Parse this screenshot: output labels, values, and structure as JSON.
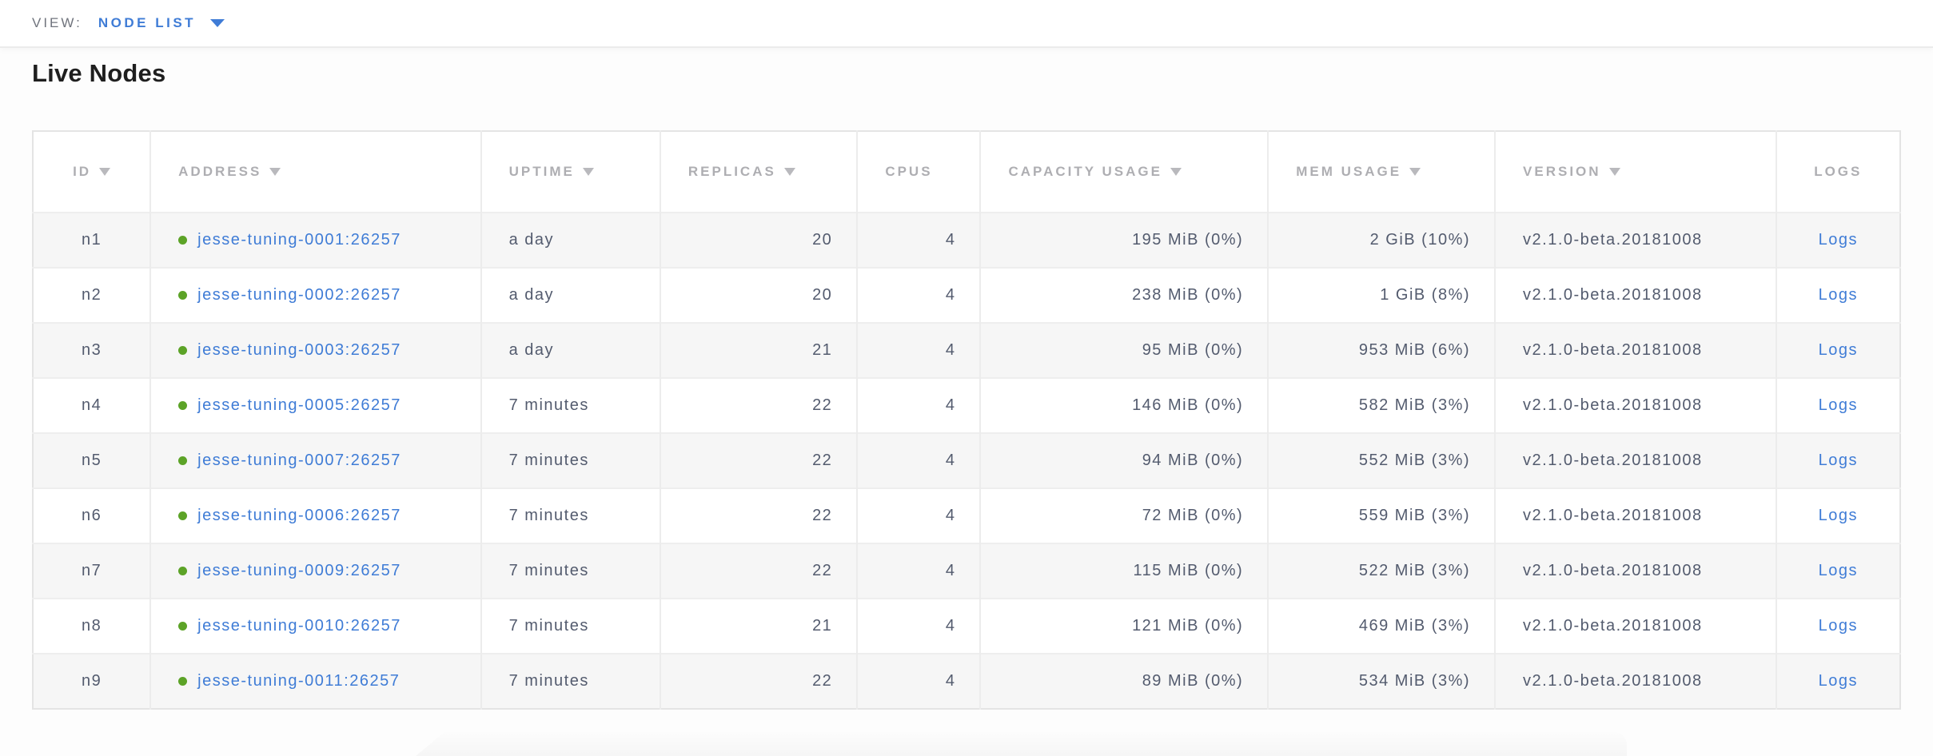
{
  "topbar": {
    "view_label": "VIEW:",
    "view_value": "NODE LIST"
  },
  "page": {
    "title": "Live Nodes"
  },
  "colors": {
    "accent_blue": "#3f7cd6",
    "link_blue": "#3f7cd6",
    "live_green": "#5ca327",
    "header_gray": "#aeaeb2",
    "cell_text": "#535b6e",
    "row_stripe": "#f6f6f6",
    "table_border": "#e4e4e4"
  },
  "table": {
    "columns": [
      {
        "key": "id",
        "label": "ID",
        "sort_arrow": true,
        "align": "center",
        "type": "text",
        "width_pct": 6.3
      },
      {
        "key": "address",
        "label": "ADDRESS",
        "sort_arrow": true,
        "align": "left",
        "type": "address_link",
        "width_pct": 17.7
      },
      {
        "key": "uptime",
        "label": "UPTIME",
        "sort_arrow": true,
        "align": "left",
        "type": "text",
        "width_pct": 9.6
      },
      {
        "key": "replicas",
        "label": "REPLICAS",
        "sort_arrow": true,
        "align": "right",
        "type": "text",
        "width_pct": 10.55,
        "header_align": "left"
      },
      {
        "key": "cpus",
        "label": "CPUS",
        "sort_arrow": false,
        "align": "right",
        "type": "text",
        "width_pct": 6.6,
        "header_align": "left"
      },
      {
        "key": "capacity_usage",
        "label": "CAPACITY USAGE",
        "sort_arrow": true,
        "align": "right",
        "type": "text",
        "width_pct": 15.4,
        "header_align": "left"
      },
      {
        "key": "mem_usage",
        "label": "MEM USAGE",
        "sort_arrow": true,
        "align": "right",
        "type": "text",
        "width_pct": 12.15,
        "header_align": "left"
      },
      {
        "key": "version",
        "label": "VERSION",
        "sort_arrow": true,
        "align": "left",
        "type": "text",
        "width_pct": 15.05
      },
      {
        "key": "logs",
        "label": "LOGS",
        "sort_arrow": false,
        "align": "center",
        "type": "link",
        "width_pct": 6.65
      }
    ],
    "rows": [
      {
        "id": "n1",
        "live": true,
        "address": "jesse-tuning-0001:26257",
        "uptime": "a day",
        "replicas": "20",
        "cpus": "4",
        "capacity_usage": "195 MiB (0%)",
        "mem_usage": "2 GiB (10%)",
        "version": "v2.1.0-beta.20181008",
        "logs": "Logs"
      },
      {
        "id": "n2",
        "live": true,
        "address": "jesse-tuning-0002:26257",
        "uptime": "a day",
        "replicas": "20",
        "cpus": "4",
        "capacity_usage": "238 MiB (0%)",
        "mem_usage": "1 GiB (8%)",
        "version": "v2.1.0-beta.20181008",
        "logs": "Logs"
      },
      {
        "id": "n3",
        "live": true,
        "address": "jesse-tuning-0003:26257",
        "uptime": "a day",
        "replicas": "21",
        "cpus": "4",
        "capacity_usage": "95 MiB (0%)",
        "mem_usage": "953 MiB (6%)",
        "version": "v2.1.0-beta.20181008",
        "logs": "Logs"
      },
      {
        "id": "n4",
        "live": true,
        "address": "jesse-tuning-0005:26257",
        "uptime": "7 minutes",
        "replicas": "22",
        "cpus": "4",
        "capacity_usage": "146 MiB (0%)",
        "mem_usage": "582 MiB (3%)",
        "version": "v2.1.0-beta.20181008",
        "logs": "Logs"
      },
      {
        "id": "n5",
        "live": true,
        "address": "jesse-tuning-0007:26257",
        "uptime": "7 minutes",
        "replicas": "22",
        "cpus": "4",
        "capacity_usage": "94 MiB (0%)",
        "mem_usage": "552 MiB (3%)",
        "version": "v2.1.0-beta.20181008",
        "logs": "Logs"
      },
      {
        "id": "n6",
        "live": true,
        "address": "jesse-tuning-0006:26257",
        "uptime": "7 minutes",
        "replicas": "22",
        "cpus": "4",
        "capacity_usage": "72 MiB (0%)",
        "mem_usage": "559 MiB (3%)",
        "version": "v2.1.0-beta.20181008",
        "logs": "Logs"
      },
      {
        "id": "n7",
        "live": true,
        "address": "jesse-tuning-0009:26257",
        "uptime": "7 minutes",
        "replicas": "22",
        "cpus": "4",
        "capacity_usage": "115 MiB (0%)",
        "mem_usage": "522 MiB (3%)",
        "version": "v2.1.0-beta.20181008",
        "logs": "Logs"
      },
      {
        "id": "n8",
        "live": true,
        "address": "jesse-tuning-0010:26257",
        "uptime": "7 minutes",
        "replicas": "21",
        "cpus": "4",
        "capacity_usage": "121 MiB (0%)",
        "mem_usage": "469 MiB (3%)",
        "version": "v2.1.0-beta.20181008",
        "logs": "Logs"
      },
      {
        "id": "n9",
        "live": true,
        "address": "jesse-tuning-0011:26257",
        "uptime": "7 minutes",
        "replicas": "22",
        "cpus": "4",
        "capacity_usage": "89 MiB (0%)",
        "mem_usage": "534 MiB (3%)",
        "version": "v2.1.0-beta.20181008",
        "logs": "Logs"
      }
    ]
  }
}
